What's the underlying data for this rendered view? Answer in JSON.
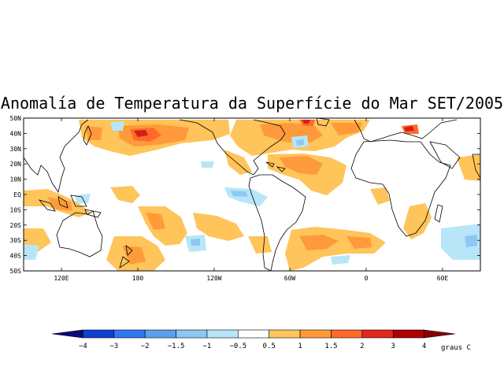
{
  "title": "Anomalía de Temperatura da Superfície do Mar SET/2005",
  "lat_labels": [
    "50N",
    "40N",
    "30N",
    "20N",
    "10N",
    "EQ",
    "10S",
    "20S",
    "30S",
    "40S",
    "50S"
  ],
  "lon_labels": [
    "120E",
    "180",
    "120W",
    "60W",
    "0",
    "60E"
  ],
  "colorbar": {
    "labels": [
      "-4",
      "-3",
      "-2",
      "-1.5",
      "-1",
      "-0.5",
      "0.5",
      "1",
      "1.5",
      "2",
      "3",
      "4"
    ],
    "unit": "graus C",
    "colors": [
      "#0a0a7a",
      "#1040d0",
      "#2f78f0",
      "#5aa0f0",
      "#8cc8f4",
      "#b8e6f8",
      "#ffffff",
      "#ffc45a",
      "#ff9a3a",
      "#ff6a2a",
      "#e0281e",
      "#b00000",
      "#8a0000"
    ]
  },
  "colors": {
    "land_outline": "#000000",
    "warm_1": "#ffc45a",
    "warm_2": "#ff9a3a",
    "warm_3": "#ff6a2a",
    "hot": "#d0201a",
    "cool_1": "#b8e6f8",
    "cool_2": "#8cc8f4"
  }
}
